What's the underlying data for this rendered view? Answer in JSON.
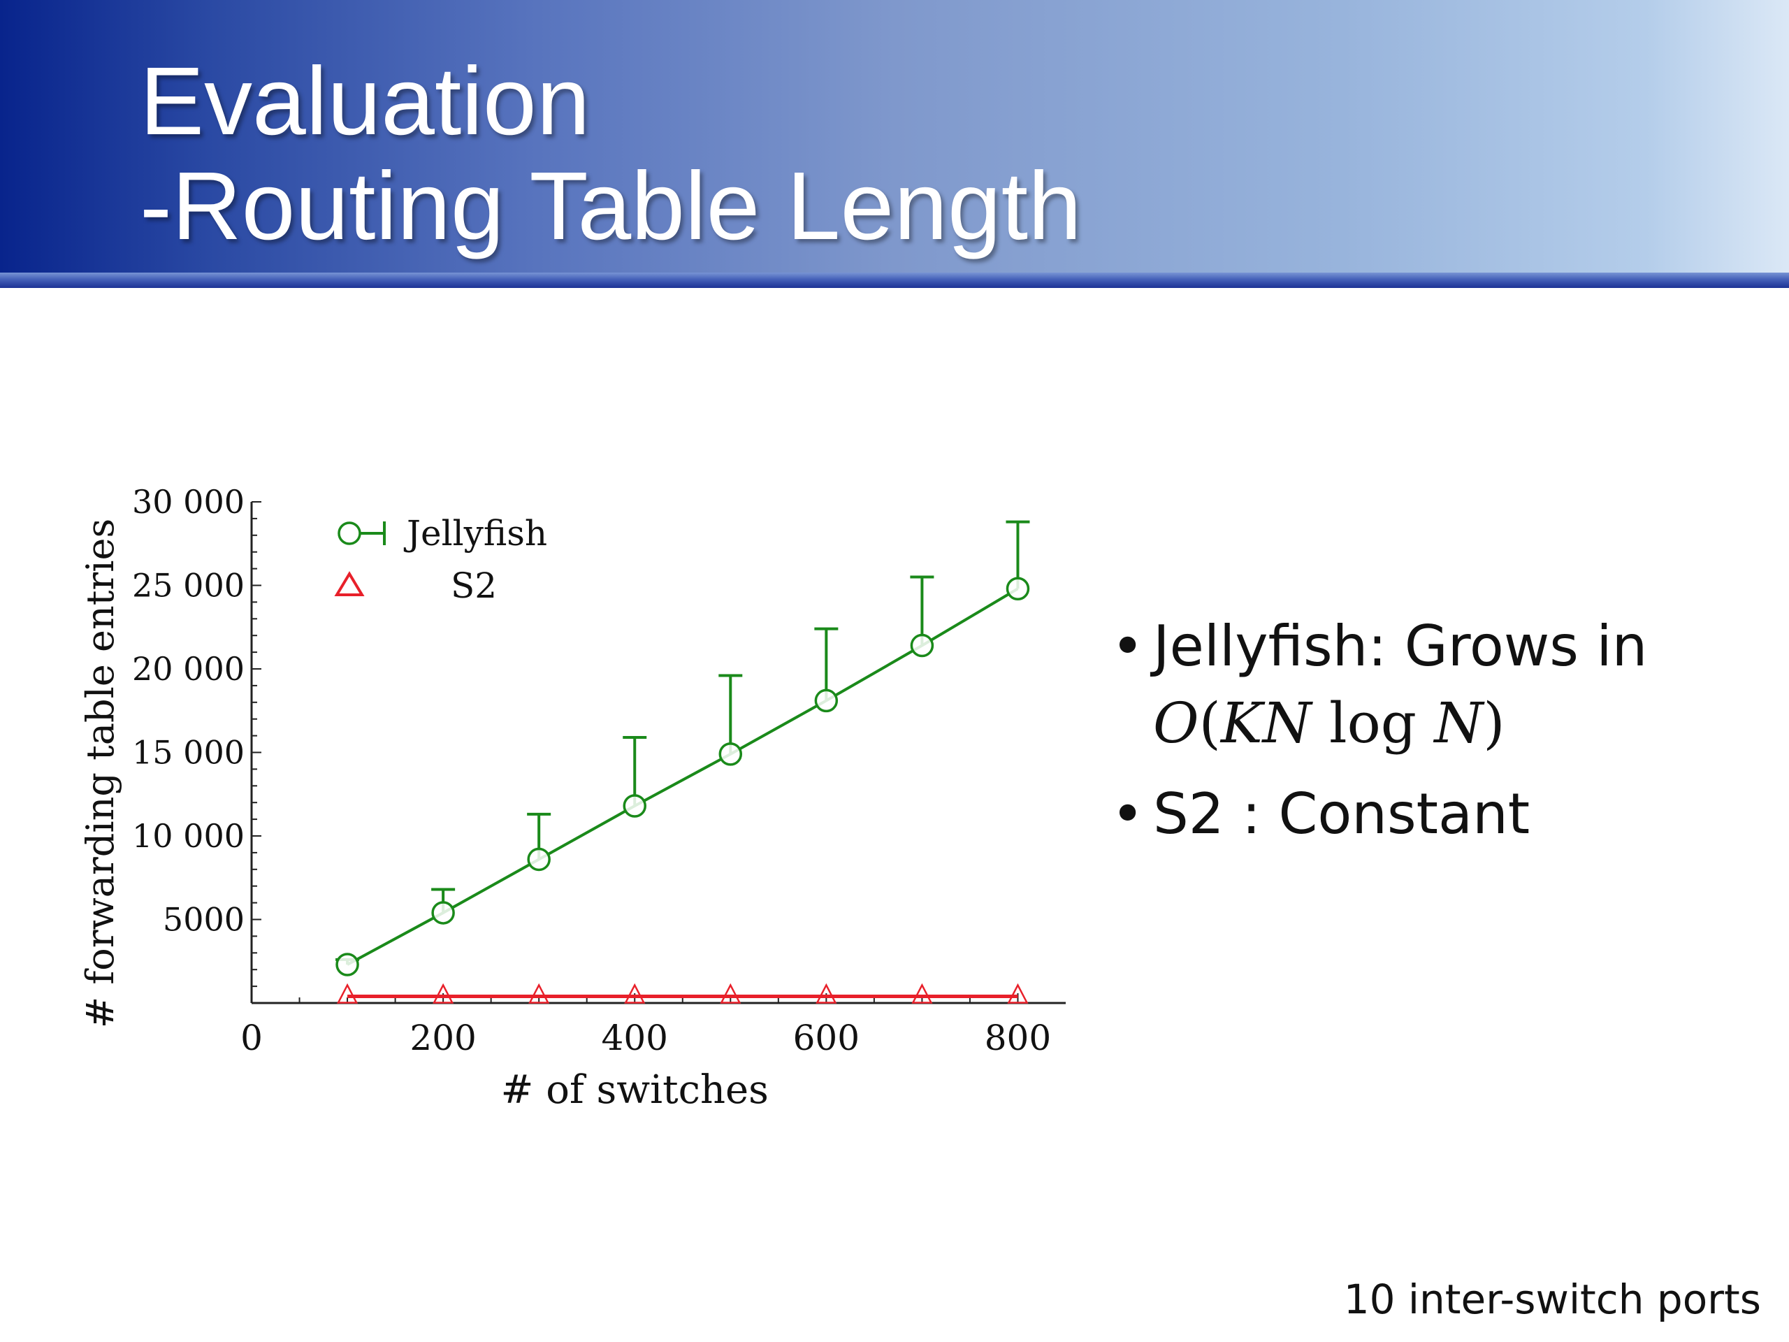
{
  "slide": {
    "title_line1": "Evaluation",
    "title_line2": "-Routing Table Length",
    "footnote": "10 inter-switch ports"
  },
  "bullets": [
    {
      "text": "Jellyfish: Grows in",
      "math": [
        "O",
        "(",
        "KN",
        " log ",
        "N",
        ")"
      ]
    },
    {
      "text": "S2 : Constant"
    }
  ],
  "chart_data": {
    "type": "scatter",
    "xlabel": "# of switches",
    "ylabel": "# forwarding table entries",
    "xlim": [
      0,
      850
    ],
    "ylim": [
      0,
      30000
    ],
    "x_ticks": [
      0,
      200,
      400,
      600,
      800
    ],
    "x_tick_labels": [
      "0",
      "200",
      "400",
      "600",
      "800"
    ],
    "y_ticks": [
      5000,
      10000,
      15000,
      20000,
      25000,
      30000
    ],
    "y_tick_labels": [
      "5000",
      "10 000",
      "15 000",
      "20 000",
      "25 000",
      "30 000"
    ],
    "legend_position": "top-left",
    "grid": false,
    "series": [
      {
        "name": "Jellyfish",
        "color": "#1a8a1a",
        "marker": "circle",
        "x": [
          100,
          200,
          300,
          400,
          500,
          600,
          700,
          800
        ],
        "y": [
          2300,
          5400,
          8600,
          11800,
          14900,
          18100,
          21400,
          24800
        ],
        "err_upper": [
          2600,
          6800,
          11300,
          15900,
          19600,
          22400,
          25500,
          28800
        ]
      },
      {
        "name": "S2",
        "color": "#e8202a",
        "marker": "triangle",
        "x": [
          100,
          200,
          300,
          400,
          500,
          600,
          700,
          800
        ],
        "y": [
          400,
          400,
          400,
          400,
          400,
          400,
          400,
          400
        ]
      }
    ]
  }
}
